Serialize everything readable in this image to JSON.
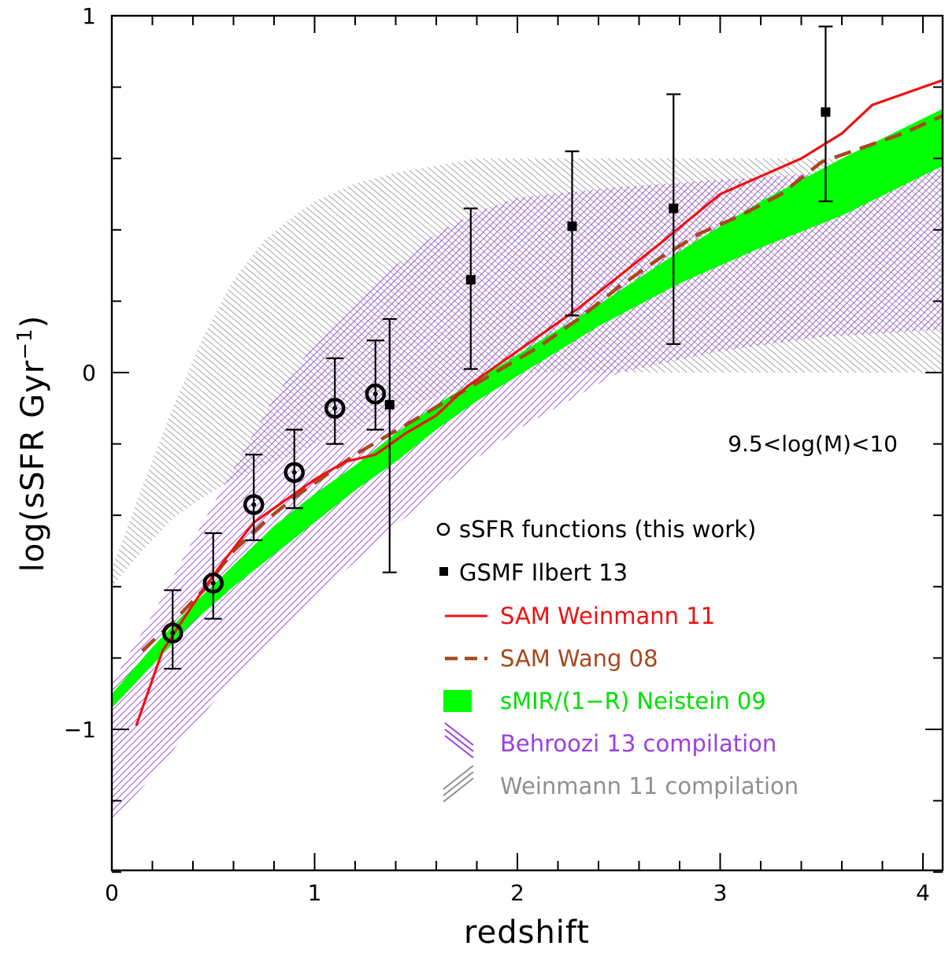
{
  "chart_data": {
    "type": "scatter",
    "xlabel": "redshift",
    "ylabel": "log(sSFR Gyr",
    "ylabel_exp": "−1",
    "ylabel_close": ")",
    "xlim": [
      0,
      4.1
    ],
    "ylim": [
      -1.4,
      1.0
    ],
    "x_ticks": [
      0,
      1,
      2,
      3,
      4
    ],
    "x_tick_labels": [
      "0",
      "1",
      "2",
      "3",
      "4"
    ],
    "x_minor_step": 0.2,
    "y_ticks": [
      -1,
      0,
      1
    ],
    "y_tick_labels": [
      "−1",
      "0",
      "1"
    ],
    "y_minor_step": 0.2,
    "annotation": "9.5<log(M)<10",
    "colors": {
      "weinmann_sam": "#ee1111",
      "wang_sam": "#a8481e",
      "neistein": "#00ff00",
      "behroozi": "#9a3fe0",
      "weinmann_comp": "#909090",
      "points": "#000000"
    },
    "series": [
      {
        "name": "sSFR functions (this work)",
        "kind": "open-circles",
        "x": [
          0.3,
          0.5,
          0.7,
          0.9,
          1.1,
          1.3
        ],
        "y": [
          -0.73,
          -0.59,
          -0.37,
          -0.28,
          -0.1,
          -0.06
        ],
        "yerr_lo": [
          -0.83,
          -0.69,
          -0.47,
          -0.38,
          -0.2,
          -0.16
        ],
        "yerr_hi": [
          -0.61,
          -0.45,
          -0.23,
          -0.16,
          0.04,
          0.09
        ]
      },
      {
        "name": "GSMF Ilbert 13",
        "kind": "filled-squares",
        "x": [
          1.37,
          1.77,
          2.27,
          2.77,
          3.52
        ],
        "y": [
          -0.09,
          0.26,
          0.41,
          0.46,
          0.73
        ],
        "yerr_lo": [
          -0.56,
          0.01,
          0.16,
          0.08,
          0.48
        ],
        "yerr_hi": [
          0.15,
          0.46,
          0.62,
          0.78,
          0.97
        ]
      },
      {
        "name": "SAM Weinmann 11",
        "kind": "line",
        "x": [
          0.12,
          0.25,
          0.4,
          0.55,
          0.7,
          0.85,
          1.0,
          1.15,
          1.3,
          1.45,
          1.6,
          1.75,
          1.9,
          2.1,
          2.3,
          2.5,
          2.7,
          2.85,
          3.0,
          3.2,
          3.4,
          3.6,
          3.75,
          3.95,
          4.1
        ],
        "y": [
          -0.99,
          -0.78,
          -0.65,
          -0.53,
          -0.42,
          -0.36,
          -0.3,
          -0.25,
          -0.23,
          -0.17,
          -0.12,
          -0.04,
          0.02,
          0.1,
          0.18,
          0.27,
          0.36,
          0.43,
          0.5,
          0.55,
          0.6,
          0.67,
          0.75,
          0.79,
          0.82
        ]
      },
      {
        "name": "SAM Wang 08",
        "kind": "dashed-line",
        "x": [
          0.15,
          0.3,
          0.45,
          0.6,
          0.75,
          0.9,
          1.05,
          1.2,
          1.35,
          1.5,
          1.65,
          1.8,
          1.95,
          2.1,
          2.3,
          2.5,
          2.7,
          2.9,
          3.1,
          3.3,
          3.5,
          3.7,
          3.9,
          4.1
        ],
        "y": [
          -0.78,
          -0.7,
          -0.61,
          -0.5,
          -0.42,
          -0.35,
          -0.29,
          -0.23,
          -0.18,
          -0.13,
          -0.08,
          -0.03,
          0.02,
          0.07,
          0.15,
          0.24,
          0.32,
          0.39,
          0.44,
          0.5,
          0.59,
          0.63,
          0.67,
          0.72
        ]
      },
      {
        "name": "sMIR/(1−R) Neistein 09",
        "kind": "band",
        "x": [
          0.0,
          0.2,
          0.4,
          0.6,
          0.8,
          1.0,
          1.2,
          1.4,
          1.6,
          1.8,
          2.0,
          2.4,
          2.8,
          3.2,
          3.6,
          4.1
        ],
        "y_lo": [
          -0.94,
          -0.82,
          -0.7,
          -0.6,
          -0.51,
          -0.42,
          -0.33,
          -0.25,
          -0.16,
          -0.08,
          -0.01,
          0.13,
          0.25,
          0.35,
          0.44,
          0.58
        ],
        "y_hi": [
          -0.9,
          -0.77,
          -0.65,
          -0.54,
          -0.43,
          -0.34,
          -0.26,
          -0.17,
          -0.09,
          -0.02,
          0.05,
          0.19,
          0.34,
          0.48,
          0.6,
          0.74
        ]
      },
      {
        "name": "Behroozi 13 compilation",
        "kind": "hatched-band",
        "x": [
          0.0,
          0.2,
          0.4,
          0.6,
          0.8,
          1.0,
          1.2,
          1.4,
          1.6,
          1.8,
          2.0,
          2.5,
          3.0,
          3.5,
          4.1
        ],
        "y_lo": [
          -1.26,
          -1.13,
          -0.99,
          -0.86,
          -0.74,
          -0.63,
          -0.53,
          -0.43,
          -0.33,
          -0.24,
          -0.16,
          0.0,
          0.06,
          0.1,
          0.12
        ],
        "y_hi": [
          -0.87,
          -0.68,
          -0.47,
          -0.27,
          -0.07,
          0.08,
          0.2,
          0.3,
          0.39,
          0.45,
          0.49,
          0.52,
          0.54,
          0.56,
          0.57
        ]
      },
      {
        "name": "Weinmann 11 compilation",
        "kind": "hatched-band",
        "x": [
          0.0,
          0.15,
          0.3,
          0.45,
          0.6,
          0.75,
          0.9,
          1.0,
          1.2,
          1.4,
          1.6,
          1.8,
          1.9,
          4.1
        ],
        "y_lo": [
          -0.6,
          -0.5,
          -0.41,
          -0.35,
          -0.3,
          -0.26,
          -0.23,
          -0.2,
          -0.16,
          -0.1,
          -0.07,
          -0.03,
          0.0,
          0.0
        ],
        "y_hi": [
          -0.55,
          -0.32,
          -0.1,
          0.1,
          0.26,
          0.37,
          0.44,
          0.48,
          0.53,
          0.56,
          0.58,
          0.6,
          0.6,
          0.6
        ]
      }
    ]
  }
}
